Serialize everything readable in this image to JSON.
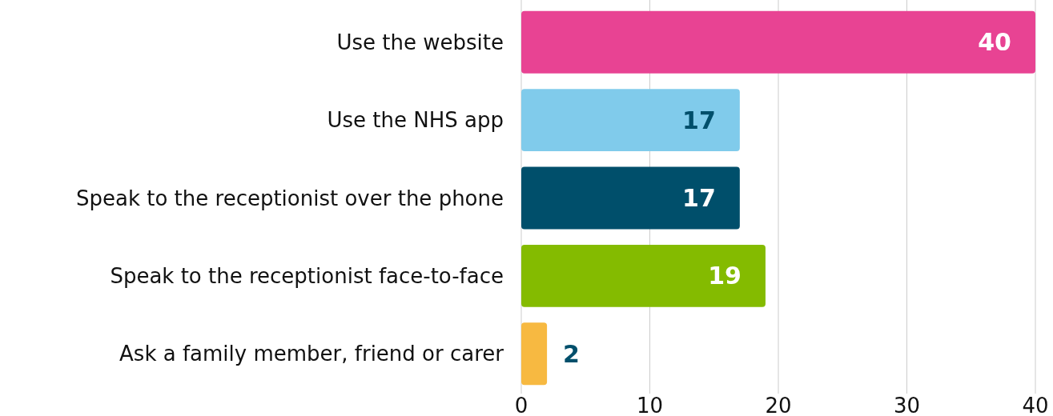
{
  "chart_data": {
    "type": "bar",
    "orientation": "horizontal",
    "categories": [
      "Use the website",
      "Use the NHS app",
      "Speak to the receptionist over the phone",
      "Speak to the receptionist face-to-face",
      "Ask a family member, friend or carer"
    ],
    "values": [
      40,
      17,
      17,
      19,
      2
    ],
    "colors": [
      "#e84393",
      "#80cbeb",
      "#004f6b",
      "#84bb00",
      "#f7b941"
    ],
    "xlim": [
      0,
      40
    ],
    "xticks": [
      0,
      10,
      20,
      30,
      40
    ],
    "grid": "x",
    "data_labels": true
  }
}
